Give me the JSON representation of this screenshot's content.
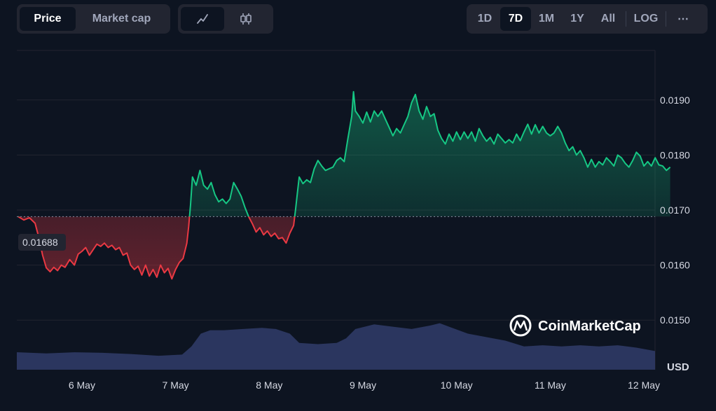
{
  "controls": {
    "metric_tabs": [
      {
        "label": "Price",
        "active": true
      },
      {
        "label": "Market cap",
        "active": false
      }
    ],
    "chart_type_icons": [
      "line-chart-icon",
      "candlestick-icon"
    ],
    "range_tabs": [
      {
        "label": "1D",
        "active": false
      },
      {
        "label": "7D",
        "active": true
      },
      {
        "label": "1M",
        "active": false
      },
      {
        "label": "1Y",
        "active": false
      },
      {
        "label": "All",
        "active": false
      }
    ],
    "log_label": "LOG",
    "more_label": "⋯"
  },
  "watermark": {
    "text": "CoinMarketCap"
  },
  "colors": {
    "background": "#0d1421",
    "up": "#16c784",
    "down": "#ea3943",
    "volume": "#2f3a66",
    "grid": "#222531"
  },
  "chart_data": {
    "type": "area",
    "base_value": 0.01688,
    "base_label": "0.01688",
    "x_labels": [
      "6 May",
      "7 May",
      "8 May",
      "9 May",
      "10 May",
      "11 May",
      "12 May"
    ],
    "y_ticks": [
      "0.0190",
      "0.0180",
      "0.0170",
      "0.0160",
      "0.0150"
    ],
    "y_unit": "USD",
    "ylim": [
      0.0141,
      0.0199
    ],
    "x_range_days": [
      0,
      7
    ],
    "series": [
      {
        "values": [
          [
            0.0,
            0.01688
          ],
          [
            0.06,
            0.01682
          ],
          [
            0.12,
            0.01686
          ],
          [
            0.18,
            0.01676
          ],
          [
            0.22,
            0.0165
          ],
          [
            0.26,
            0.01618
          ],
          [
            0.3,
            0.01595
          ],
          [
            0.34,
            0.01588
          ],
          [
            0.38,
            0.01596
          ],
          [
            0.42,
            0.0159
          ],
          [
            0.46,
            0.016
          ],
          [
            0.5,
            0.01596
          ],
          [
            0.55,
            0.0161
          ],
          [
            0.6,
            0.016
          ],
          [
            0.64,
            0.0162
          ],
          [
            0.68,
            0.01625
          ],
          [
            0.72,
            0.01632
          ],
          [
            0.76,
            0.01618
          ],
          [
            0.8,
            0.01628
          ],
          [
            0.84,
            0.01638
          ],
          [
            0.88,
            0.01634
          ],
          [
            0.92,
            0.0164
          ],
          [
            0.96,
            0.01632
          ],
          [
            1.0,
            0.01636
          ],
          [
            1.04,
            0.01628
          ],
          [
            1.08,
            0.01632
          ],
          [
            1.12,
            0.01618
          ],
          [
            1.16,
            0.01622
          ],
          [
            1.2,
            0.016
          ],
          [
            1.24,
            0.01592
          ],
          [
            1.28,
            0.01598
          ],
          [
            1.32,
            0.01582
          ],
          [
            1.36,
            0.016
          ],
          [
            1.4,
            0.0158
          ],
          [
            1.44,
            0.01592
          ],
          [
            1.48,
            0.01578
          ],
          [
            1.52,
            0.016
          ],
          [
            1.56,
            0.01586
          ],
          [
            1.6,
            0.01594
          ],
          [
            1.64,
            0.01575
          ],
          [
            1.68,
            0.01592
          ],
          [
            1.72,
            0.01605
          ],
          [
            1.76,
            0.01612
          ],
          [
            1.8,
            0.0164
          ],
          [
            1.82,
            0.0167
          ],
          [
            1.84,
            0.0171
          ],
          [
            1.86,
            0.0176
          ],
          [
            1.9,
            0.01745
          ],
          [
            1.94,
            0.01772
          ],
          [
            1.98,
            0.01745
          ],
          [
            2.02,
            0.01738
          ],
          [
            2.06,
            0.0175
          ],
          [
            2.1,
            0.01728
          ],
          [
            2.14,
            0.01715
          ],
          [
            2.18,
            0.0172
          ],
          [
            2.22,
            0.01712
          ],
          [
            2.26,
            0.0172
          ],
          [
            2.3,
            0.0175
          ],
          [
            2.34,
            0.01738
          ],
          [
            2.38,
            0.01725
          ],
          [
            2.42,
            0.01705
          ],
          [
            2.46,
            0.01688
          ],
          [
            2.5,
            0.01675
          ],
          [
            2.54,
            0.0166
          ],
          [
            2.58,
            0.01668
          ],
          [
            2.62,
            0.01655
          ],
          [
            2.66,
            0.01662
          ],
          [
            2.7,
            0.01652
          ],
          [
            2.74,
            0.01658
          ],
          [
            2.78,
            0.01648
          ],
          [
            2.82,
            0.0165
          ],
          [
            2.86,
            0.0164
          ],
          [
            2.9,
            0.01658
          ],
          [
            2.94,
            0.01672
          ],
          [
            2.96,
            0.017
          ],
          [
            2.98,
            0.0173
          ],
          [
            3.0,
            0.0176
          ],
          [
            3.04,
            0.01748
          ],
          [
            3.08,
            0.01755
          ],
          [
            3.12,
            0.0175
          ],
          [
            3.16,
            0.01775
          ],
          [
            3.2,
            0.0179
          ],
          [
            3.24,
            0.0178
          ],
          [
            3.28,
            0.01772
          ],
          [
            3.32,
            0.01775
          ],
          [
            3.36,
            0.01778
          ],
          [
            3.4,
            0.0179
          ],
          [
            3.44,
            0.01795
          ],
          [
            3.48,
            0.01788
          ],
          [
            3.52,
            0.0183
          ],
          [
            3.56,
            0.0187
          ],
          [
            3.58,
            0.01915
          ],
          [
            3.6,
            0.0188
          ],
          [
            3.64,
            0.0187
          ],
          [
            3.68,
            0.01858
          ],
          [
            3.72,
            0.01878
          ],
          [
            3.76,
            0.0186
          ],
          [
            3.8,
            0.0188
          ],
          [
            3.84,
            0.0187
          ],
          [
            3.88,
            0.0188
          ],
          [
            3.92,
            0.01865
          ],
          [
            3.96,
            0.0185
          ],
          [
            4.0,
            0.01835
          ],
          [
            4.04,
            0.01848
          ],
          [
            4.08,
            0.0184
          ],
          [
            4.12,
            0.01855
          ],
          [
            4.16,
            0.0187
          ],
          [
            4.2,
            0.01895
          ],
          [
            4.24,
            0.0191
          ],
          [
            4.28,
            0.0188
          ],
          [
            4.32,
            0.01865
          ],
          [
            4.36,
            0.01888
          ],
          [
            4.4,
            0.0187
          ],
          [
            4.44,
            0.01875
          ],
          [
            4.48,
            0.01845
          ],
          [
            4.52,
            0.0183
          ],
          [
            4.56,
            0.0182
          ],
          [
            4.6,
            0.01838
          ],
          [
            4.64,
            0.01825
          ],
          [
            4.68,
            0.01842
          ],
          [
            4.72,
            0.01828
          ],
          [
            4.76,
            0.01842
          ],
          [
            4.8,
            0.0183
          ],
          [
            4.84,
            0.01842
          ],
          [
            4.88,
            0.01825
          ],
          [
            4.92,
            0.01848
          ],
          [
            4.96,
            0.01835
          ],
          [
            5.0,
            0.01825
          ],
          [
            5.04,
            0.01832
          ],
          [
            5.08,
            0.0182
          ],
          [
            5.12,
            0.01838
          ],
          [
            5.16,
            0.0183
          ],
          [
            5.2,
            0.01822
          ],
          [
            5.24,
            0.01828
          ],
          [
            5.28,
            0.01822
          ],
          [
            5.32,
            0.01838
          ],
          [
            5.36,
            0.01826
          ],
          [
            5.4,
            0.01842
          ],
          [
            5.44,
            0.01856
          ],
          [
            5.48,
            0.01838
          ],
          [
            5.52,
            0.01855
          ],
          [
            5.56,
            0.0184
          ],
          [
            5.6,
            0.01852
          ],
          [
            5.64,
            0.0184
          ],
          [
            5.68,
            0.01835
          ],
          [
            5.72,
            0.0184
          ],
          [
            5.76,
            0.01852
          ],
          [
            5.8,
            0.0184
          ],
          [
            5.84,
            0.01822
          ],
          [
            5.88,
            0.01808
          ],
          [
            5.92,
            0.01815
          ],
          [
            5.96,
            0.018
          ],
          [
            6.0,
            0.01808
          ],
          [
            6.04,
            0.01795
          ],
          [
            6.08,
            0.01778
          ],
          [
            6.12,
            0.01792
          ],
          [
            6.16,
            0.01778
          ],
          [
            6.2,
            0.01788
          ],
          [
            6.24,
            0.01782
          ],
          [
            6.28,
            0.01795
          ],
          [
            6.32,
            0.01788
          ],
          [
            6.36,
            0.0178
          ],
          [
            6.4,
            0.018
          ],
          [
            6.44,
            0.01795
          ],
          [
            6.48,
            0.01785
          ],
          [
            6.52,
            0.01778
          ],
          [
            6.56,
            0.0179
          ],
          [
            6.6,
            0.01805
          ],
          [
            6.64,
            0.01798
          ],
          [
            6.68,
            0.0178
          ],
          [
            6.72,
            0.01788
          ],
          [
            6.76,
            0.0178
          ],
          [
            6.8,
            0.01795
          ],
          [
            6.84,
            0.01782
          ],
          [
            6.88,
            0.0178
          ],
          [
            6.92,
            0.01772
          ],
          [
            6.96,
            0.01778
          ]
        ]
      },
      {
        "name": "volume",
        "values": [
          [
            0.0,
            0.3
          ],
          [
            0.3,
            0.28
          ],
          [
            0.6,
            0.3
          ],
          [
            0.9,
            0.29
          ],
          [
            1.2,
            0.27
          ],
          [
            1.5,
            0.24
          ],
          [
            1.75,
            0.26
          ],
          [
            1.85,
            0.4
          ],
          [
            1.95,
            0.62
          ],
          [
            2.05,
            0.68
          ],
          [
            2.2,
            0.68
          ],
          [
            2.4,
            0.7
          ],
          [
            2.6,
            0.72
          ],
          [
            2.75,
            0.7
          ],
          [
            2.9,
            0.62
          ],
          [
            3.0,
            0.46
          ],
          [
            3.2,
            0.44
          ],
          [
            3.4,
            0.46
          ],
          [
            3.5,
            0.54
          ],
          [
            3.6,
            0.7
          ],
          [
            3.8,
            0.78
          ],
          [
            4.0,
            0.74
          ],
          [
            4.2,
            0.7
          ],
          [
            4.4,
            0.76
          ],
          [
            4.5,
            0.8
          ],
          [
            4.6,
            0.74
          ],
          [
            4.8,
            0.62
          ],
          [
            5.0,
            0.56
          ],
          [
            5.2,
            0.5
          ],
          [
            5.4,
            0.4
          ],
          [
            5.6,
            0.42
          ],
          [
            5.8,
            0.4
          ],
          [
            6.0,
            0.42
          ],
          [
            6.2,
            0.4
          ],
          [
            6.4,
            0.42
          ],
          [
            6.6,
            0.38
          ],
          [
            6.8,
            0.32
          ],
          [
            6.96,
            0.36
          ]
        ]
      }
    ],
    "grid": true,
    "base_line": "dotted"
  }
}
